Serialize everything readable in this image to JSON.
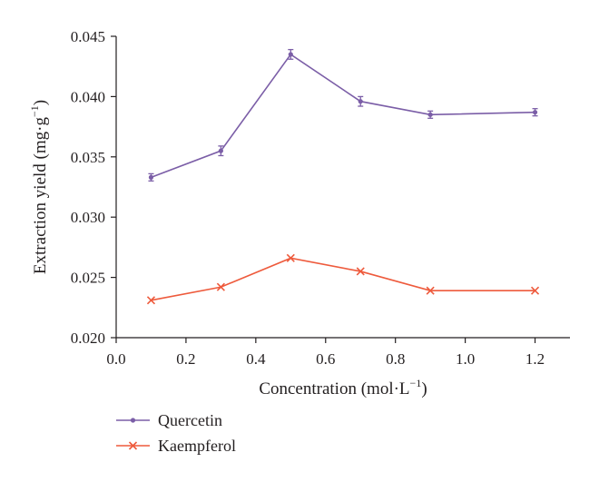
{
  "chart_data": {
    "type": "line",
    "title": "",
    "xlabel": "Concentration (mol·L",
    "xlabel_sup": "−1",
    "xlabel_end": ")",
    "ylabel": "Extraction yield (mg·g",
    "ylabel_sup": "−1",
    "ylabel_end": ")",
    "x": [
      0.1,
      0.3,
      0.5,
      0.7,
      0.9,
      1.2
    ],
    "xlim": [
      0.0,
      1.3
    ],
    "ylim": [
      0.02,
      0.045
    ],
    "xticks": [
      0.0,
      0.2,
      0.4,
      0.6,
      0.8,
      1.0,
      1.2
    ],
    "xtick_labels": [
      "0.0",
      "0.2",
      "0.4",
      "0.6",
      "0.8",
      "1.0",
      "1.2"
    ],
    "yticks": [
      0.02,
      0.025,
      0.03,
      0.035,
      0.04,
      0.045
    ],
    "ytick_labels": [
      "0.020",
      "0.025",
      "0.030",
      "0.035",
      "0.040",
      "0.045"
    ],
    "grid": false,
    "legend_placement": "bottom-left",
    "series": [
      {
        "name": "Quercetin",
        "values": [
          0.0333,
          0.0355,
          0.0435,
          0.0396,
          0.0385,
          0.0387
        ],
        "errors": [
          0.0003,
          0.0004,
          0.0004,
          0.0004,
          0.0003,
          0.0003
        ],
        "color": "#7b5ea7",
        "marker": "dot"
      },
      {
        "name": "Kaempferol",
        "values": [
          0.0231,
          0.0242,
          0.0266,
          0.0255,
          0.0239,
          0.0239
        ],
        "color": "#ee5a3c",
        "marker": "x"
      }
    ]
  }
}
